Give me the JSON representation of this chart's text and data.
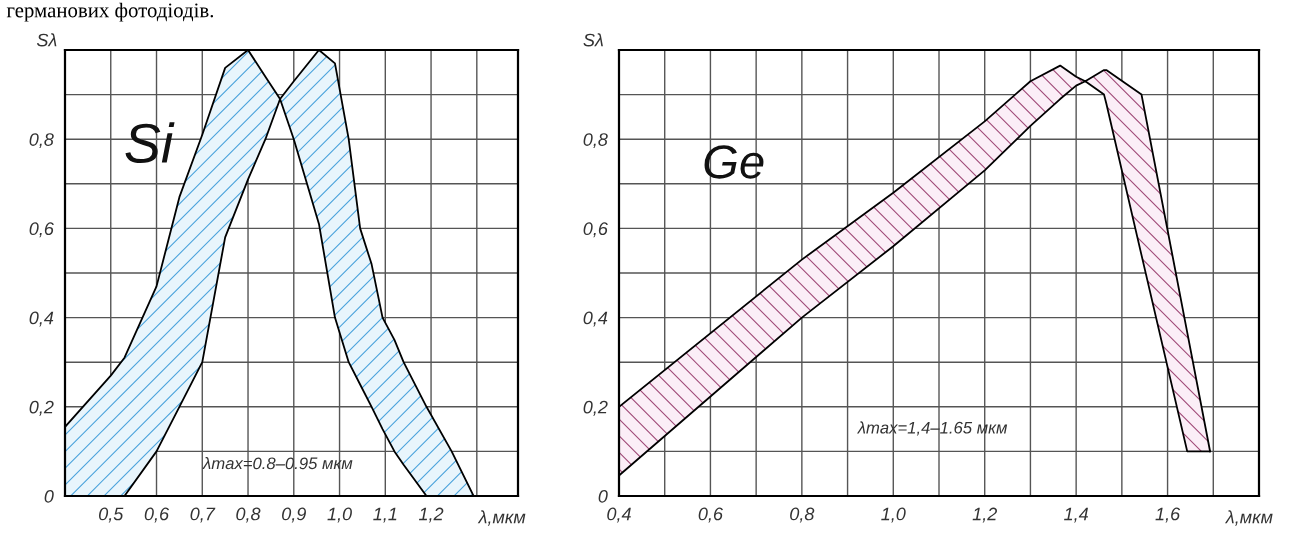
{
  "chart_data": [
    {
      "type": "line",
      "ylabel": "Sλ",
      "xlabel": "λ,мкм",
      "annotations": [
        "Si",
        "λmax=0.8–0.95 мкм",
        "германових фотодіодів."
      ],
      "series": [
        {
          "color": "#000000",
          "x": [
            0.4,
            0.5,
            0.53,
            0.6,
            0.65,
            0.7,
            0.75,
            0.8,
            0.838,
            0.87,
            0.9,
            0.955,
            0.99,
            1.02,
            1.045,
            1.07,
            1.094,
            1.12,
            1.14,
            1.19,
            1.245,
            1.293
          ],
          "values": [
            0.0,
            0.0,
            0.0,
            0.1,
            0.2,
            0.3,
            0.58,
            0.71,
            0.8,
            0.89,
            0.8,
            0.61,
            0.4,
            0.3,
            0.25,
            0.2,
            0.15,
            0.1,
            0.07,
            0.0,
            0.0,
            0.0
          ]
        },
        {
          "type": "area",
          "color": "#e8f5fc",
          "x": [
            0.4,
            0.5,
            0.53,
            0.6,
            0.65,
            0.7,
            0.75,
            0.8,
            0.838,
            0.87,
            0.9,
            0.955,
            0.99,
            1.02,
            1.045,
            1.07,
            1.094,
            1.12,
            1.14,
            1.19,
            1.245,
            1.293
          ],
          "values": [
            0.155,
            0.27,
            0.31,
            0.47,
            0.67,
            0.81,
            0.96,
            1.0,
            0.94,
            0.89,
            0.93,
            1.0,
            0.97,
            0.8,
            0.6,
            0.52,
            0.4,
            0.35,
            0.3,
            0.2,
            0.1,
            0.0
          ]
        }
      ],
      "xlim": [
        0.4,
        1.39
      ],
      "ylim": [
        0,
        1.0
      ],
      "xticks": [
        {
          "value": 0.4,
          "label": null
        },
        {
          "value": 0.5,
          "label": "0,5"
        },
        {
          "value": 0.6,
          "label": "0,6"
        },
        {
          "value": 0.7,
          "label": "0,7"
        },
        {
          "value": 0.8,
          "label": "0,8"
        },
        {
          "value": 0.9,
          "label": "0,9"
        },
        {
          "value": 1.0,
          "label": "1,0"
        },
        {
          "value": 1.1,
          "label": "1,1"
        },
        {
          "value": 1.2,
          "label": "1,2"
        },
        {
          "value": 1.3,
          "label": null
        }
      ],
      "yticks": [
        0,
        {
          "value": 0.1,
          "label": null
        },
        {
          "value": 0.2,
          "label": "0,2"
        },
        {
          "value": 0.3,
          "label": null
        },
        {
          "value": 0.4,
          "label": "0,4"
        },
        {
          "value": 0.5,
          "label": null
        },
        {
          "value": 0.6,
          "label": "0,6"
        },
        {
          "value": 0.7,
          "label": null
        },
        {
          "value": 0.8,
          "label": "0,8"
        },
        {
          "value": 0.9,
          "label": null
        },
        {
          "value": 1.0,
          "label": null
        }
      ],
      "grid": true
    },
    {
      "type": "line",
      "ylabel": "Sλ",
      "xlabel": "λ,мкм",
      "annotations": [
        "Ge",
        "λmax=1,4–1.65 мкм"
      ],
      "series": [
        {
          "color": "#000000",
          "x": [
            0.4,
            0.8,
            1.0,
            1.2,
            1.3,
            1.365,
            1.4,
            1.42,
            1.461,
            1.466,
            1.543,
            1.643,
            1.693
          ],
          "values": [
            0.046,
            0.4,
            0.56,
            0.73,
            0.83,
            0.89,
            0.92,
            0.93,
            0.9,
            0.88,
            0.54,
            0.1,
            0.1
          ]
        },
        {
          "type": "area",
          "color": "#fbeef7",
          "x": [
            0.4,
            0.8,
            1.0,
            1.2,
            1.3,
            1.365,
            1.4,
            1.42,
            1.461,
            1.466,
            1.543,
            1.643,
            1.693
          ],
          "values": [
            0.2,
            0.53,
            0.68,
            0.84,
            0.93,
            0.965,
            0.94,
            0.93,
            0.955,
            0.955,
            0.9,
            0.367,
            0.1
          ]
        }
      ],
      "xlim": [
        0.4,
        1.8
      ],
      "ylim": [
        0,
        1.0
      ],
      "xticks": [
        {
          "value": 0.4,
          "label": "0,4"
        },
        {
          "value": 0.5,
          "label": null
        },
        {
          "value": 0.6,
          "label": "0,6"
        },
        {
          "value": 0.7,
          "label": null
        },
        {
          "value": 0.8,
          "label": "0,8"
        },
        {
          "value": 0.9,
          "label": null
        },
        {
          "value": 1.0,
          "label": "1,0"
        },
        {
          "value": 1.1,
          "label": null
        },
        {
          "value": 1.2,
          "label": "1,2"
        },
        {
          "value": 1.3,
          "label": null
        },
        {
          "value": 1.4,
          "label": "1,4"
        },
        {
          "value": 1.5,
          "label": null
        },
        {
          "value": 1.6,
          "label": "1,6"
        },
        {
          "value": 1.7,
          "label": null
        }
      ],
      "yticks": [
        0,
        {
          "value": 0.1,
          "label": null
        },
        {
          "value": 0.2,
          "label": "0,2"
        },
        {
          "value": 0.3,
          "label": null
        },
        {
          "value": 0.4,
          "label": "0,4"
        },
        {
          "value": 0.5,
          "label": null
        },
        {
          "value": 0.6,
          "label": "0,6"
        },
        {
          "value": 0.7,
          "label": null
        },
        {
          "value": 0.8,
          "label": "0,8"
        },
        {
          "value": 0.9,
          "label": null
        },
        {
          "value": 1.0,
          "label": null
        }
      ],
      "grid": true
    }
  ]
}
